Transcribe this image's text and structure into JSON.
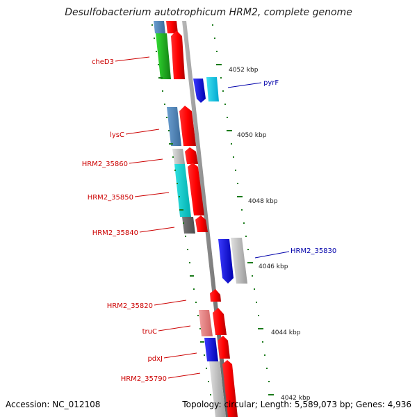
{
  "title": "Desulfobacterium autotrophicum HRM2, complete genome",
  "footer": {
    "accession": "Accession: NC_012108",
    "summary": "Topology: circular; Length: 5,589,073 bp; Genes: 4,936"
  },
  "kbp_labels": [
    "4052 kbp",
    "4050 kbp",
    "4048 kbp",
    "4046 kbp",
    "4044 kbp",
    "4042 kbp"
  ],
  "genes_left": [
    "cheD3",
    "lysC",
    "HRM2_35860",
    "HRM2_35850",
    "HRM2_35840",
    "HRM2_35820",
    "truC",
    "pdxJ",
    "HRM2_35790"
  ],
  "genes_right": [
    "pyrF",
    "HRM2_35830"
  ],
  "colors": {
    "label_left": "#cc0000",
    "label_right": "#0000aa",
    "tick": "#1a7a1a",
    "backbone": "#8c8c8c"
  }
}
